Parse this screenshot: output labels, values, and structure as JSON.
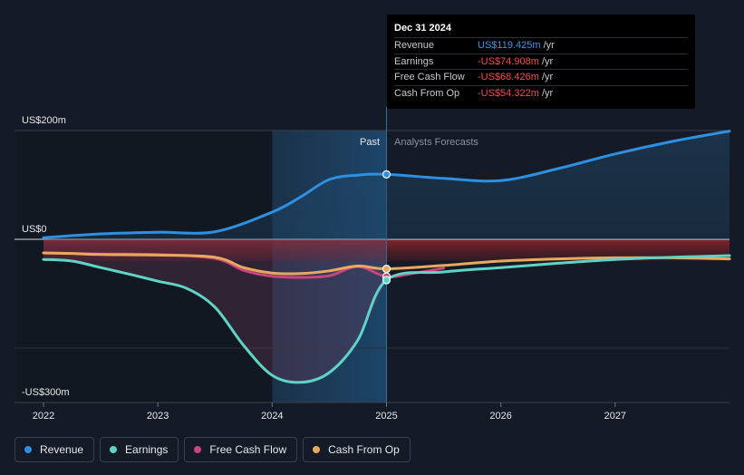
{
  "chart_data": {
    "type": "line",
    "y_axis": {
      "top_label": "US$200m",
      "zero_label": "US$0",
      "bottom_label": "-US$300m",
      "ylim": [
        -300,
        200
      ]
    },
    "x_ticks": [
      "2022",
      "2023",
      "2024",
      "2025",
      "2026",
      "2027"
    ],
    "region_labels": {
      "past": "Past",
      "forecast": "Analysts Forecasts"
    },
    "divider_x": 2025.0,
    "series": [
      {
        "name": "Revenue",
        "color": "#2f8fe0",
        "points": [
          [
            2022.0,
            3
          ],
          [
            2022.5,
            10
          ],
          [
            2023.0,
            13
          ],
          [
            2023.5,
            14
          ],
          [
            2024.0,
            50
          ],
          [
            2024.25,
            78
          ],
          [
            2024.5,
            110
          ],
          [
            2024.75,
            118
          ],
          [
            2025.0,
            119.425
          ],
          [
            2025.5,
            112
          ],
          [
            2026.0,
            108
          ],
          [
            2026.5,
            130
          ],
          [
            2027.0,
            157
          ],
          [
            2027.5,
            180
          ],
          [
            2028.0,
            199
          ]
        ]
      },
      {
        "name": "Earnings",
        "color": "#5fd3c6",
        "points": [
          [
            2022.0,
            -37
          ],
          [
            2022.25,
            -40
          ],
          [
            2022.5,
            -52
          ],
          [
            2022.75,
            -64
          ],
          [
            2023.0,
            -77
          ],
          [
            2023.25,
            -90
          ],
          [
            2023.5,
            -125
          ],
          [
            2023.75,
            -195
          ],
          [
            2024.0,
            -250
          ],
          [
            2024.25,
            -263
          ],
          [
            2024.5,
            -245
          ],
          [
            2024.75,
            -185
          ],
          [
            2025.0,
            -74.908
          ],
          [
            2025.5,
            -60
          ],
          [
            2026.0,
            -52
          ],
          [
            2026.5,
            -44
          ],
          [
            2027.0,
            -37
          ],
          [
            2027.5,
            -33
          ],
          [
            2028.0,
            -30
          ]
        ]
      },
      {
        "name": "Free Cash Flow",
        "color": "#c8457f",
        "points": [
          [
            2022.0,
            -25
          ],
          [
            2022.5,
            -27
          ],
          [
            2023.0,
            -28
          ],
          [
            2023.5,
            -35
          ],
          [
            2023.75,
            -57
          ],
          [
            2024.0,
            -68
          ],
          [
            2024.25,
            -70
          ],
          [
            2024.5,
            -67
          ],
          [
            2024.75,
            -50
          ],
          [
            2025.0,
            -68.426
          ],
          [
            2025.25,
            -62
          ],
          [
            2025.5,
            -53
          ]
        ]
      },
      {
        "name": "Cash From Op",
        "color": "#e8a95f",
        "points": [
          [
            2022.0,
            -25
          ],
          [
            2022.25,
            -26
          ],
          [
            2022.5,
            -28
          ],
          [
            2023.0,
            -29
          ],
          [
            2023.5,
            -33
          ],
          [
            2023.75,
            -52
          ],
          [
            2024.0,
            -62
          ],
          [
            2024.25,
            -63
          ],
          [
            2024.5,
            -58
          ],
          [
            2024.75,
            -49
          ],
          [
            2025.0,
            -54.322
          ],
          [
            2025.5,
            -48
          ],
          [
            2026.0,
            -40
          ],
          [
            2026.5,
            -36
          ],
          [
            2027.0,
            -34
          ],
          [
            2027.5,
            -34
          ],
          [
            2028.0,
            -36
          ]
        ]
      }
    ]
  },
  "tooltip": {
    "date": "Dec 31 2024",
    "unit": "/yr",
    "rows": [
      {
        "label": "Revenue",
        "value": "US$119.425m",
        "color": "#3d97e6"
      },
      {
        "label": "Earnings",
        "value": "-US$74.908m",
        "color": "#f0504d"
      },
      {
        "label": "Free Cash Flow",
        "value": "-US$68.426m",
        "color": "#f0504d"
      },
      {
        "label": "Cash From Op",
        "value": "-US$54.322m",
        "color": "#f0504d"
      }
    ]
  },
  "legend": [
    {
      "label": "Revenue",
      "color": "#2f8fe0"
    },
    {
      "label": "Earnings",
      "color": "#5fd3c6"
    },
    {
      "label": "Free Cash Flow",
      "color": "#c8457f"
    },
    {
      "label": "Cash From Op",
      "color": "#e8a95f"
    }
  ]
}
